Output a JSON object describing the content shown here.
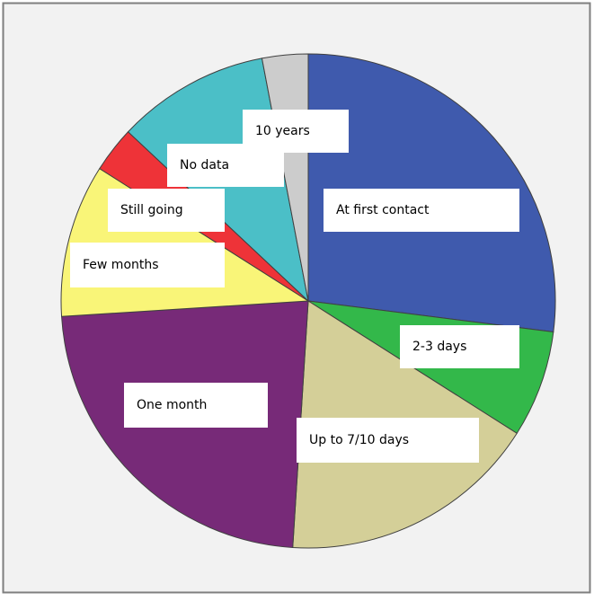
{
  "chart_data": {
    "type": "pie",
    "categories": [
      "At first contact",
      "2-3 days",
      "Up to 7/10 days",
      "One month",
      "Few months",
      "Still going",
      "No data",
      "10 years"
    ],
    "values": [
      27,
      7,
      17,
      23,
      10,
      3,
      10,
      3
    ],
    "colors": [
      "#3f5aad",
      "#33b84a",
      "#d4cf98",
      "#772a78",
      "#f9f578",
      "#ee3338",
      "#4bbfc7",
      "#cccccc"
    ]
  }
}
